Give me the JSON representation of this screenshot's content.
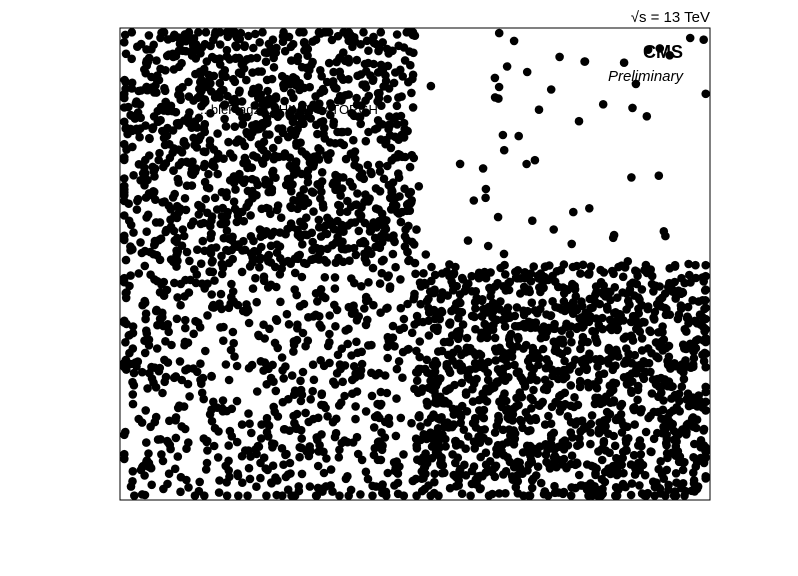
{
  "chart_data": {
    "type": "scatter",
    "title": "",
    "xlabel": "",
    "ylabel": "",
    "xlim": [
      0,
      1
    ],
    "ylim": [
      0,
      1
    ],
    "grid": false,
    "marker_color": "#000000",
    "energy_label": "√s = 13 TeV",
    "experiment_label": "CMS",
    "status_label": "Preliminary",
    "legend_text": "...bleFlag2 ... HINDICATORGH",
    "series": [
      {
        "regions": [
          {
            "x_range": [
              0.0,
              0.5
            ],
            "y_range": [
              0.5,
              1.0
            ],
            "count": 1150
          },
          {
            "x_range": [
              0.0,
              0.5
            ],
            "y_range": [
              0.0,
              0.5
            ],
            "count": 620
          },
          {
            "x_range": [
              0.5,
              1.0
            ],
            "y_range": [
              0.0,
              0.5
            ],
            "count": 1350
          },
          {
            "x_range": [
              0.5,
              1.0
            ],
            "y_range": [
              0.5,
              1.0
            ],
            "count": 55
          }
        ]
      }
    ]
  }
}
